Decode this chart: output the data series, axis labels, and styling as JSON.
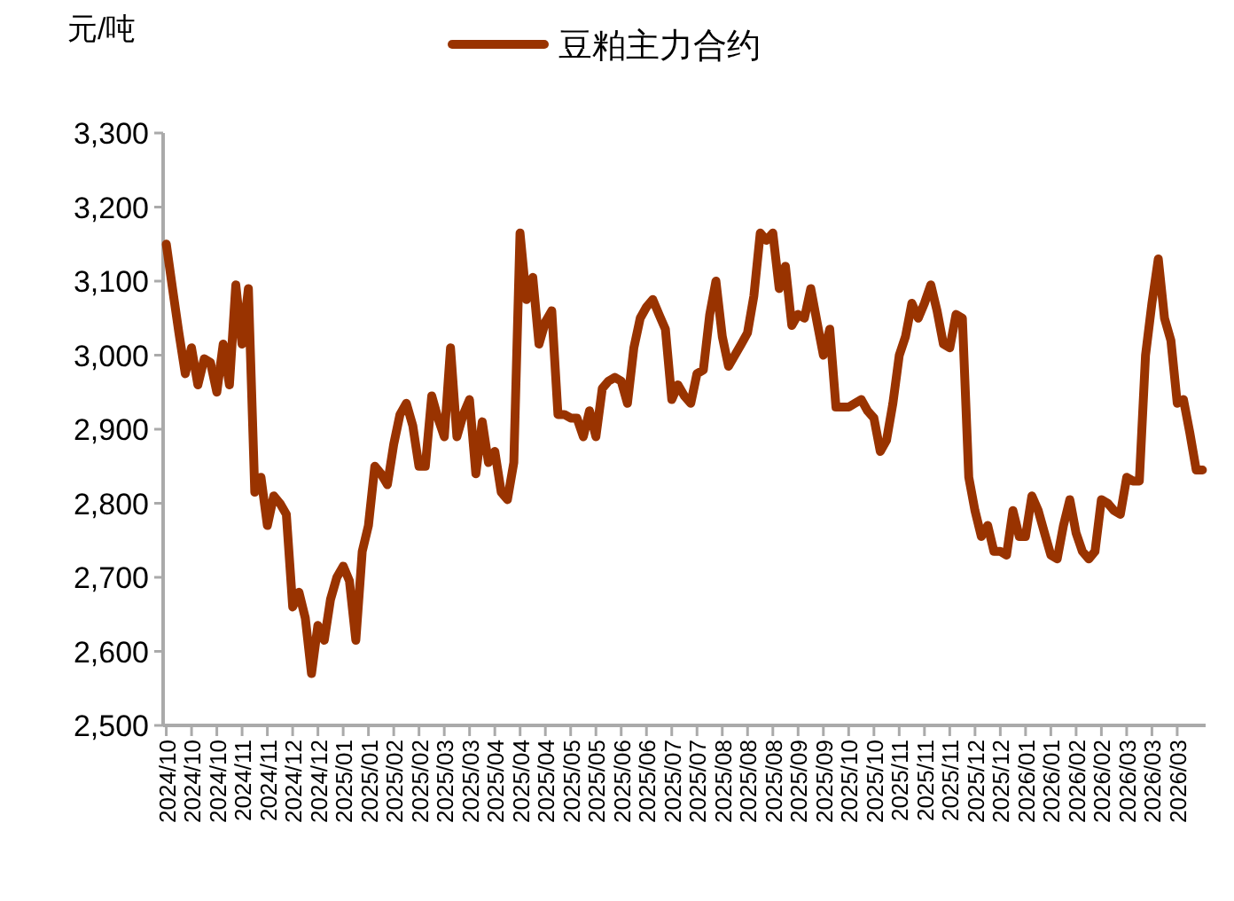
{
  "chart_data": {
    "type": "line",
    "ylabel": "元/吨",
    "legend": "top",
    "grid": false,
    "marker": "none",
    "line_style": "solid",
    "ylim": [
      2500,
      3300
    ],
    "yticks": [
      {
        "value": 2500,
        "label": "2,500"
      },
      {
        "value": 2600,
        "label": "2,600"
      },
      {
        "value": 2700,
        "label": "2,700"
      },
      {
        "value": 2800,
        "label": "2,800"
      },
      {
        "value": 2900,
        "label": "2,900"
      },
      {
        "value": 3000,
        "label": "3,000"
      },
      {
        "value": 3100,
        "label": "3,100"
      },
      {
        "value": 3200,
        "label": "3,200"
      },
      {
        "value": 3300,
        "label": "3,300"
      }
    ],
    "categories": [
      "2024/10",
      null,
      null,
      null,
      "2024/10",
      null,
      null,
      null,
      "2024/10",
      null,
      null,
      null,
      "2024/11",
      null,
      null,
      null,
      "2024/11",
      null,
      null,
      null,
      "2024/12",
      null,
      null,
      null,
      "2024/12",
      null,
      null,
      null,
      "2025/01",
      null,
      null,
      null,
      "2025/01",
      null,
      null,
      null,
      "2025/02",
      null,
      null,
      null,
      "2025/02",
      null,
      null,
      null,
      "2025/03",
      null,
      null,
      null,
      "2025/03",
      null,
      null,
      null,
      "2025/04",
      null,
      null,
      null,
      "2025/04",
      null,
      null,
      null,
      "2025/04",
      null,
      null,
      null,
      "2025/05",
      null,
      null,
      null,
      "2025/05",
      null,
      null,
      null,
      "2025/06",
      null,
      null,
      null,
      "2025/06",
      null,
      null,
      null,
      "2025/07",
      null,
      null,
      null,
      "2025/07",
      null,
      null,
      null,
      "2025/08",
      null,
      null,
      null,
      "2025/08",
      null,
      null,
      null,
      "2025/08",
      null,
      null,
      null,
      "2025/09",
      null,
      null,
      null,
      "2025/09",
      null,
      null,
      null,
      "2025/10",
      null,
      null,
      null,
      "2025/10",
      null,
      null,
      null,
      "2025/11",
      null,
      null,
      null,
      "2025/11",
      null,
      null,
      null,
      "2025/11",
      null,
      null,
      null,
      "2025/12",
      null,
      null,
      null,
      "2025/12",
      null,
      null,
      null,
      "2026/01",
      null,
      null,
      null,
      "2026/01",
      null,
      null,
      null,
      "2026/02",
      null,
      null,
      null,
      "2026/02",
      null,
      null,
      null,
      "2026/03",
      null,
      null,
      null,
      "2026/03",
      null,
      null,
      null,
      "2026/03",
      null,
      null,
      null,
      null
    ],
    "series": [
      {
        "name": "豆粕主力合约",
        "color": "#993300",
        "values": [
          3150,
          3090,
          3030,
          2975,
          3010,
          2960,
          2995,
          2990,
          2950,
          3015,
          2960,
          3095,
          3015,
          3090,
          2815,
          2835,
          2770,
          2810,
          2800,
          2785,
          2660,
          2680,
          2645,
          2570,
          2635,
          2615,
          2670,
          2700,
          2715,
          2695,
          2615,
          2735,
          2770,
          2850,
          2840,
          2825,
          2880,
          2920,
          2935,
          2905,
          2850,
          2850,
          2945,
          2915,
          2890,
          3010,
          2890,
          2920,
          2940,
          2840,
          2910,
          2855,
          2870,
          2815,
          2805,
          2855,
          3165,
          3075,
          3105,
          3015,
          3045,
          3060,
          2920,
          2920,
          2915,
          2915,
          2890,
          2925,
          2890,
          2955,
          2965,
          2970,
          2965,
          2935,
          3010,
          3050,
          3065,
          3075,
          3055,
          3035,
          2940,
          2960,
          2945,
          2935,
          2975,
          2980,
          3055,
          3100,
          3025,
          2985,
          3000,
          3015,
          3030,
          3080,
          3165,
          3155,
          3165,
          3090,
          3120,
          3040,
          3055,
          3050,
          3090,
          3045,
          3000,
          3035,
          2930,
          2930,
          2930,
          2935,
          2940,
          2925,
          2915,
          2870,
          2885,
          2935,
          3000,
          3025,
          3070,
          3050,
          3070,
          3095,
          3060,
          3015,
          3010,
          3055,
          3050,
          2835,
          2790,
          2755,
          2770,
          2735,
          2735,
          2730,
          2790,
          2755,
          2755,
          2810,
          2790,
          2760,
          2730,
          2725,
          2770,
          2805,
          2760,
          2735,
          2725,
          2735,
          2805,
          2800,
          2790,
          2785,
          2835,
          2830,
          2830,
          3000,
          3070,
          3130,
          3050,
          3020,
          2935,
          2940,
          2895,
          2845,
          2845
        ]
      }
    ]
  }
}
